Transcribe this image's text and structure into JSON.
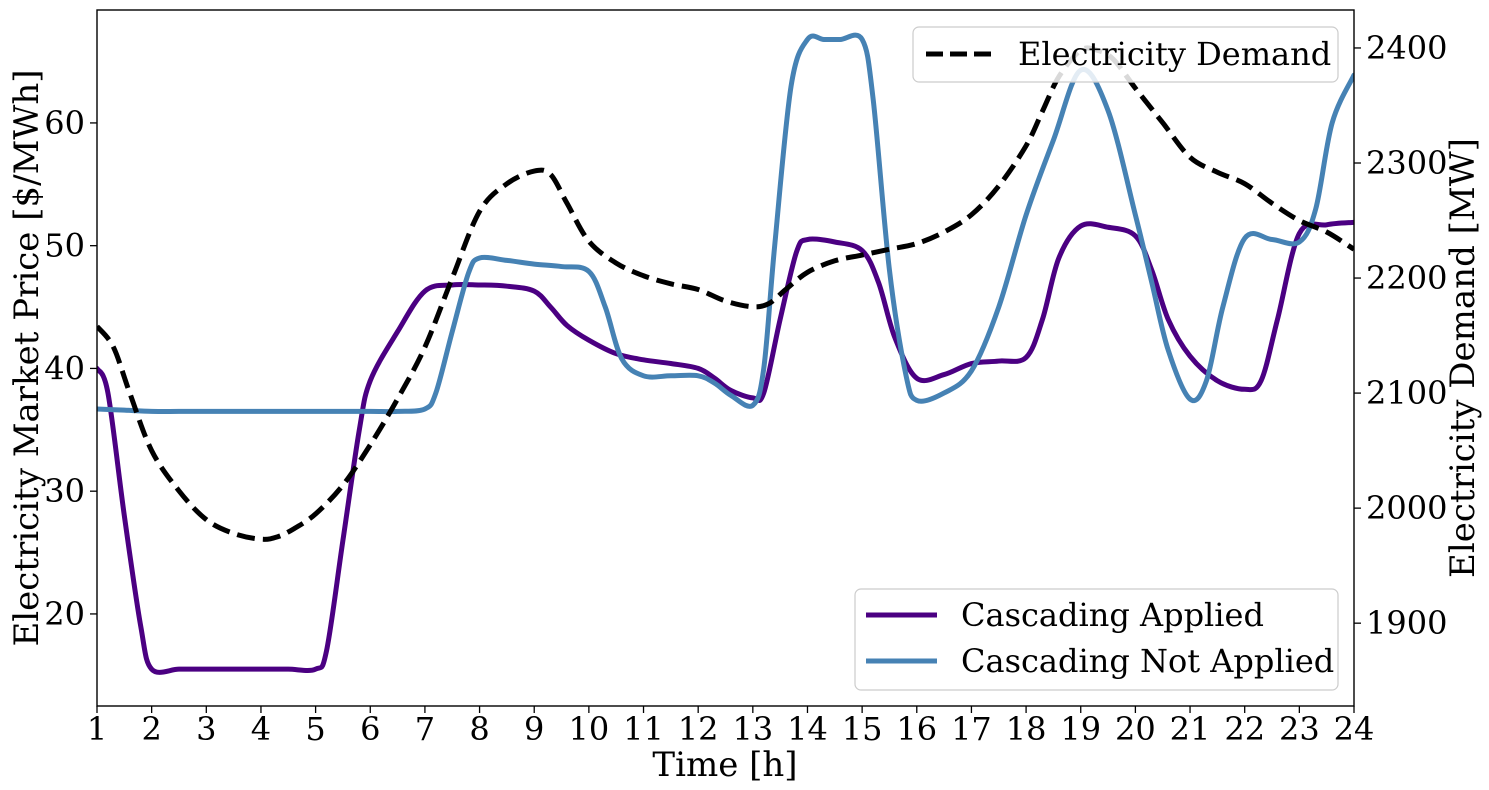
{
  "chart_data": {
    "type": "line",
    "title": "",
    "xlabel": "Time [h]",
    "ylabel_left": "Electricity Market Price [$/MWh]",
    "ylabel_right": "Electricity Demand [MW]",
    "x_ticks": [
      "1",
      "2",
      "3",
      "4",
      "5",
      "6",
      "7",
      "8",
      "9",
      "10",
      "11",
      "12",
      "13",
      "14",
      "15",
      "16",
      "17",
      "18",
      "19",
      "20",
      "21",
      "22",
      "23",
      "24"
    ],
    "y_left_ticks": [
      "20",
      "30",
      "40",
      "50",
      "60"
    ],
    "y_right_ticks": [
      "1900",
      "2000",
      "2100",
      "2200",
      "2300",
      "2400"
    ],
    "xlim": [
      1,
      24
    ],
    "ylim_left": [
      12.5,
      69.2
    ],
    "ylim_right": [
      1828,
      2433
    ],
    "grid": false,
    "legends": [
      {
        "placement": "upper-right",
        "entries": [
          "Electricity Demand"
        ]
      },
      {
        "placement": "lower-right",
        "entries": [
          "Cascading Applied",
          "Cascading Not Applied"
        ]
      }
    ],
    "series": [
      {
        "name": "Cascading Applied",
        "axis": "left",
        "color": "#4b0082",
        "style": "solid",
        "x": [
          1,
          1.2,
          1.5,
          1.8,
          2,
          2.5,
          3,
          3.5,
          4,
          4.5,
          5,
          5.2,
          5.5,
          5.8,
          6,
          6.5,
          7,
          7.5,
          8,
          8.5,
          9,
          9.3,
          9.6,
          10,
          10.5,
          11,
          11.5,
          12,
          12.3,
          12.6,
          13,
          13.2,
          13.5,
          13.8,
          14,
          14.5,
          15,
          15.3,
          15.6,
          16,
          16.5,
          17,
          17.5,
          18,
          18.3,
          18.6,
          19,
          19.5,
          20,
          20.3,
          20.6,
          21,
          21.5,
          22,
          22.3,
          22.6,
          23,
          23.5,
          24
        ],
        "y": [
          40,
          38,
          28,
          19,
          15.5,
          15.5,
          15.5,
          15.5,
          15.5,
          15.5,
          15.5,
          17,
          26,
          35,
          39,
          43,
          46.3,
          46.8,
          46.8,
          46.7,
          46.3,
          45,
          43.5,
          42.3,
          41.2,
          40.7,
          40.4,
          40,
          39.2,
          38.2,
          37.6,
          38,
          44,
          49.5,
          50.5,
          50.3,
          49.6,
          47,
          42.5,
          39.2,
          39.5,
          40.4,
          40.6,
          40.9,
          44,
          49,
          51.6,
          51.5,
          50.8,
          48,
          44,
          41,
          39,
          38.3,
          39,
          44,
          51,
          51.7,
          51.9
        ]
      },
      {
        "name": "Cascading Not Applied",
        "axis": "left",
        "color": "#4682b4",
        "style": "solid",
        "x": [
          1,
          1.5,
          2,
          2.5,
          3,
          3.5,
          4,
          4.5,
          5,
          5.5,
          6,
          6.5,
          7,
          7.2,
          7.5,
          7.8,
          8,
          8.5,
          9,
          9.5,
          10,
          10.3,
          10.6,
          11,
          11.5,
          12,
          12.3,
          12.6,
          13,
          13.2,
          13.4,
          13.7,
          14,
          14.3,
          14.6,
          15,
          15.2,
          15.5,
          15.8,
          16,
          16.5,
          17,
          17.5,
          18,
          18.5,
          19,
          19.5,
          20,
          20.3,
          20.6,
          21,
          21.3,
          21.6,
          22,
          22.5,
          23,
          23.3,
          23.6,
          24
        ],
        "y": [
          36.7,
          36.6,
          36.5,
          36.5,
          36.5,
          36.5,
          36.5,
          36.5,
          36.5,
          36.5,
          36.5,
          36.5,
          36.7,
          38,
          43,
          47.8,
          49,
          48.8,
          48.5,
          48.3,
          47.9,
          45,
          40.8,
          39.4,
          39.4,
          39.4,
          38.8,
          37.8,
          37,
          40,
          50,
          63,
          66.8,
          66.8,
          66.8,
          66.8,
          62,
          48,
          39.5,
          37.4,
          38,
          39.8,
          45,
          52.5,
          58.6,
          64.3,
          61,
          52.5,
          47,
          41.5,
          37.5,
          39,
          45,
          50.6,
          50.5,
          50.3,
          53,
          60,
          63.9
        ]
      },
      {
        "name": "Electricity Demand",
        "axis": "right",
        "color": "#000000",
        "style": "dashed",
        "x": [
          1,
          1.3,
          1.6,
          2,
          2.5,
          3,
          3.5,
          4,
          4.3,
          4.6,
          5,
          5.5,
          6,
          6.5,
          7,
          7.5,
          8,
          8.5,
          9,
          9.3,
          9.6,
          10,
          10.5,
          11,
          11.5,
          12,
          12.5,
          13,
          13.3,
          13.6,
          14,
          14.5,
          15,
          15.5,
          16,
          16.5,
          17,
          17.5,
          18,
          18.3,
          18.6,
          19,
          19.3,
          19.6,
          20,
          20.5,
          21,
          21.5,
          22,
          22.5,
          23,
          23.5,
          24
        ],
        "y": [
          2158,
          2140,
          2100,
          2050,
          2015,
          1990,
          1978,
          1973,
          1975,
          1982,
          1995,
          2020,
          2055,
          2095,
          2140,
          2200,
          2258,
          2282,
          2293,
          2290,
          2265,
          2232,
          2213,
          2202,
          2195,
          2190,
          2180,
          2175,
          2178,
          2190,
          2205,
          2215,
          2220,
          2225,
          2230,
          2240,
          2255,
          2280,
          2315,
          2345,
          2375,
          2398,
          2398,
          2390,
          2365,
          2335,
          2305,
          2292,
          2282,
          2265,
          2250,
          2240,
          2225
        ]
      }
    ]
  }
}
